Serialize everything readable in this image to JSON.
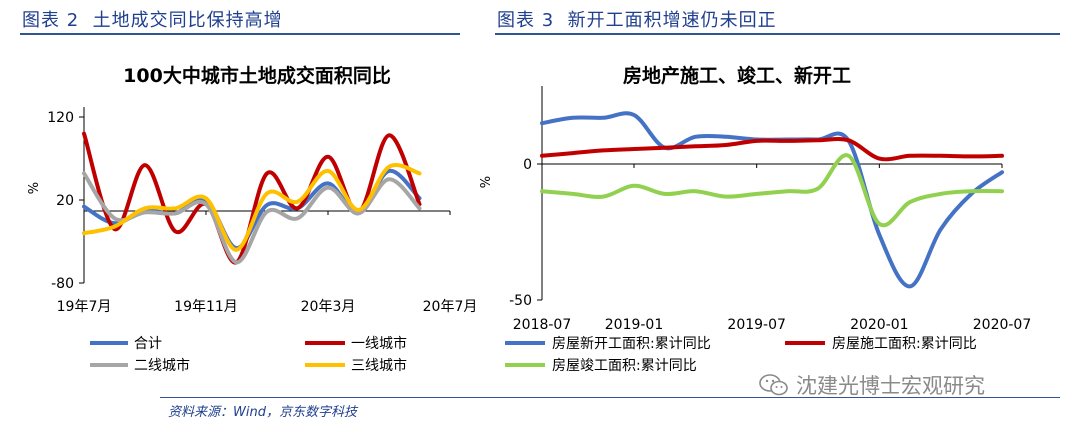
{
  "figures": [
    {
      "label": "图表 2",
      "title": "土地成交同比保持高增"
    },
    {
      "label": "图表 3",
      "title": "新开工面积增速仍未回正"
    }
  ],
  "source_note": "资料来源：Wind，京东数字科技",
  "watermark": "沈建光博士宏观研究",
  "colors": {
    "blue": "#4472c4",
    "red": "#c00000",
    "gray": "#a6a6a6",
    "yellow": "#ffc000",
    "green": "#92d050",
    "title_blue": "#1f3f8f"
  },
  "chart_data": [
    {
      "type": "line",
      "title": "100大中城市土地成交面积同比",
      "ylabel": "%",
      "ylim": [
        -80,
        120
      ],
      "yticks": [
        120,
        20,
        -80
      ],
      "x": [
        "19年7月",
        "19年8月",
        "19年9月",
        "19年10月",
        "19年11月",
        "19年12月",
        "20年1月",
        "20年2月",
        "20年3月",
        "20年4月",
        "20年5月",
        "20年6月",
        "20年7月"
      ],
      "xtick_labels": [
        "19年7月",
        "19年11月",
        "20年3月",
        "20年7月"
      ],
      "legend": "bottom",
      "series": [
        {
          "name": "合计",
          "color": "#4472c4",
          "values": [
            12,
            -8,
            7,
            4,
            20,
            -38,
            14,
            10,
            40,
            4,
            55,
            22,
            null
          ]
        },
        {
          "name": "一线城市",
          "color": "#c00000",
          "values": [
            100,
            -15,
            62,
            -18,
            15,
            -55,
            52,
            10,
            72,
            5,
            98,
            15,
            null
          ]
        },
        {
          "name": "二线城市",
          "color": "#a6a6a6",
          "values": [
            52,
            -2,
            5,
            4,
            15,
            -55,
            6,
            -2,
            35,
            4,
            45,
            10,
            null
          ]
        },
        {
          "name": "三线城市",
          "color": "#ffc000",
          "values": [
            -20,
            -12,
            10,
            10,
            22,
            -40,
            28,
            18,
            55,
            8,
            60,
            52,
            null
          ]
        }
      ]
    },
    {
      "type": "line",
      "title": "房地产施工、竣工、新开工",
      "ylabel": "%",
      "ylim": [
        -50,
        25
      ],
      "yticks": [
        0,
        -50
      ],
      "x": [
        "2018-07",
        "2018-09",
        "2018-11",
        "2019-01",
        "2019-02",
        "2019-03",
        "2019-05",
        "2019-07",
        "2019-09",
        "2019-11",
        "2019-12",
        "2020-01",
        "2020-02",
        "2020-03",
        "2020-05",
        "2020-07"
      ],
      "xtick_labels": [
        "2018-07",
        "2019-01",
        "2019-07",
        "2020-01",
        "2020-07"
      ],
      "legend": "bottom",
      "series": [
        {
          "name": "房屋新开工面积:累计同比",
          "color": "#4472c4",
          "values": [
            15,
            17,
            17,
            18,
            6,
            10,
            10,
            9,
            9,
            9,
            8.5,
            -26,
            -45,
            -24,
            -11,
            -3
          ]
        },
        {
          "name": "房屋施工面积:累计同比",
          "color": "#c00000",
          "values": [
            3,
            4,
            5,
            5.5,
            6,
            6.5,
            7,
            8.5,
            8.5,
            8.7,
            8.7,
            2,
            3,
            3,
            2.8,
            3
          ]
        },
        {
          "name": "房屋竣工面积:累计同比",
          "color": "#92d050",
          "values": [
            -10,
            -11,
            -12,
            -8,
            -11,
            -10,
            -12,
            -11,
            -10,
            -9,
            3,
            -22,
            -14,
            -11,
            -10,
            -10
          ]
        }
      ]
    }
  ]
}
